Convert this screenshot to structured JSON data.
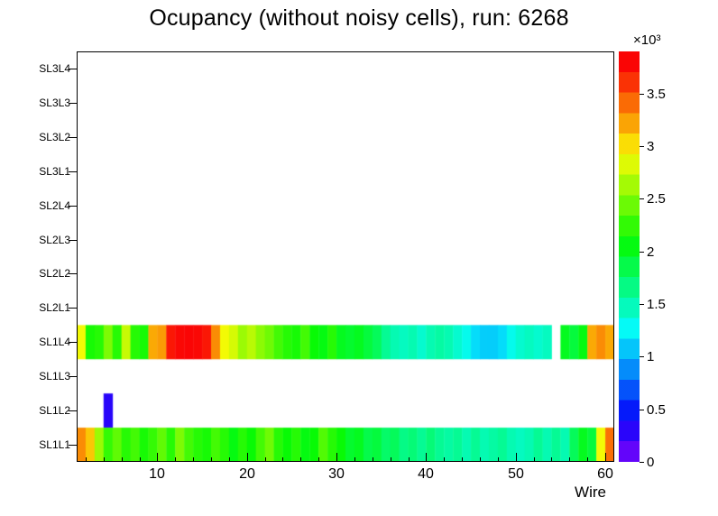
{
  "chart_data": {
    "type": "heatmap",
    "title": "Ocupancy (without noisy cells), run: 6268",
    "xlabel": "Wire",
    "x_min": 1,
    "x_max": 61,
    "n_wires": 60,
    "x_major_ticks": [
      10,
      20,
      30,
      40,
      50,
      60
    ],
    "x_minor_tick_step": 2,
    "y_categories_bottom_to_top": [
      "SL1L1",
      "SL1L2",
      "SL1L3",
      "SL1L4",
      "SL2L1",
      "SL2L2",
      "SL2L3",
      "SL2L4",
      "SL3L1",
      "SL3L2",
      "SL3L3",
      "SL3L4"
    ],
    "values_unit": "counts x 10^3",
    "z_unit_exponent": "×10³",
    "z_max": 3.9,
    "z_ticks": [
      0,
      0.5,
      1,
      1.5,
      2,
      2.5,
      3,
      3.5
    ],
    "z_tick_labels": [
      "0",
      "0.5",
      "1",
      "1.5",
      "2",
      "2.5",
      "3",
      "3.5"
    ],
    "palette": "rainbow",
    "empty_value": 0,
    "series": [
      {
        "row": "SL1L4",
        "first_wire": 1,
        "values": [
          2.9,
          2.15,
          2.2,
          2.5,
          2.2,
          2.75,
          2.2,
          2.15,
          3.2,
          3.25,
          3.7,
          3.75,
          3.8,
          3.75,
          3.7,
          3.3,
          2.9,
          2.8,
          2.6,
          2.7,
          2.55,
          2.45,
          2.3,
          2.2,
          2.15,
          2.3,
          2.1,
          2.05,
          2.2,
          2.0,
          1.95,
          2.0,
          1.9,
          1.8,
          1.6,
          1.5,
          1.45,
          1.5,
          1.4,
          1.5,
          1.55,
          1.5,
          1.4,
          1.3,
          1.15,
          1.1,
          1.1,
          1.15,
          1.3,
          1.4,
          1.45,
          1.4,
          1.45,
          0,
          2.0,
          1.9,
          2.05,
          3.2,
          3.3,
          3.2
        ]
      },
      {
        "row": "SL1L2",
        "first_wire": 1,
        "values": [
          0,
          0,
          0,
          0.3,
          0,
          0,
          0,
          0,
          0,
          0,
          0,
          0,
          0,
          0,
          0,
          0,
          0,
          0,
          0,
          0,
          0,
          0,
          0,
          0,
          0,
          0,
          0,
          0,
          0,
          0,
          0,
          0,
          0,
          0,
          0,
          0,
          0,
          0,
          0,
          0,
          0,
          0,
          0,
          0,
          0,
          0,
          0,
          0,
          0,
          0,
          0,
          0,
          0,
          0,
          0,
          0,
          0,
          0,
          0,
          0
        ]
      },
      {
        "row": "SL1L1",
        "first_wire": 1,
        "values": [
          3.3,
          3.1,
          2.6,
          2.25,
          2.4,
          2.2,
          2.3,
          2.15,
          2.25,
          2.4,
          2.2,
          2.5,
          2.3,
          2.2,
          2.15,
          2.3,
          2.2,
          2.05,
          2.2,
          2.1,
          2.3,
          2.45,
          2.2,
          2.1,
          2.2,
          2.05,
          2.1,
          2.35,
          2.2,
          2.1,
          1.95,
          2.0,
          1.85,
          1.9,
          1.75,
          1.8,
          1.65,
          1.7,
          1.6,
          1.7,
          1.6,
          1.55,
          1.6,
          1.5,
          1.6,
          1.5,
          1.55,
          1.6,
          1.5,
          1.45,
          1.5,
          1.6,
          1.5,
          1.6,
          1.5,
          1.8,
          2.0,
          1.9,
          2.9,
          3.4
        ]
      }
    ]
  }
}
